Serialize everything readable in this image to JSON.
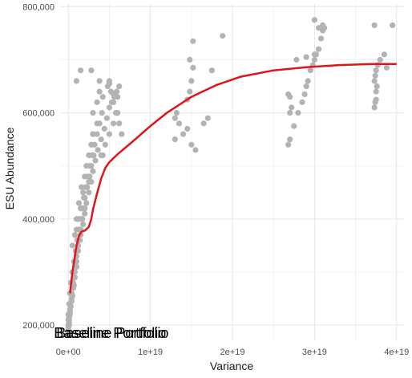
{
  "chart_data": {
    "type": "scatter",
    "xlabel": "Variance",
    "ylabel": "ESU Abundance",
    "xlim": [
      -1e+18,
      4.1e+19
    ],
    "ylim": [
      170000,
      805000
    ],
    "x_ticks": [
      0,
      1e+19,
      2e+19,
      3e+19,
      4e+19
    ],
    "x_tick_labels": [
      "0e+00",
      "1e+19",
      "2e+19",
      "3e+19",
      "4e+19"
    ],
    "y_ticks": [
      200000,
      400000,
      600000,
      800000
    ],
    "y_tick_labels": [
      "200,000",
      "400,000",
      "600,000",
      "800,000"
    ],
    "grid": true,
    "point_color": "#b3b3b3",
    "line_color": "#e0141b",
    "annotations": [
      {
        "text": "Baseline Portfolio",
        "x": 0,
        "y": 185000
      },
      {
        "text": "Baseline Portfolio",
        "x": 3e+17,
        "y": 185000
      }
    ],
    "series": [
      {
        "kind": "points",
        "x": [
          1.5e+18,
          1.8e+18,
          2e+18,
          2.2e+18,
          2.5e+18,
          2.8e+18,
          3e+18,
          3.5e+18,
          1e+18,
          1.2e+18,
          1.3e+18,
          1.6e+18,
          5e+17,
          8e+17,
          1e+18,
          2e+18,
          2.5e+18,
          4e+18,
          4.5e+18,
          5e+18,
          5.5e+18,
          6e+18,
          3e+18,
          3.5e+18,
          3.8e+18,
          4.2e+18,
          4.8e+18,
          5e+18,
          5.2e+18,
          5.5e+18,
          5.8e+18,
          6.2e+18,
          6.5e+18,
          1e+18,
          1.2e+18,
          1.5e+18,
          1.8e+18,
          2e+18,
          2.2e+18,
          2.5e+18,
          2.8e+18,
          3e+18,
          3.3e+18,
          3.6e+18,
          4e+18,
          4.4e+18,
          4.7e+18,
          5e+18,
          5.3e+18,
          5.6e+18,
          5.9e+18,
          6.2e+18,
          5e+17,
          7e+17,
          9e+17,
          1.1e+18,
          1.3e+18,
          1.5e+18,
          1.7e+18,
          1.9e+18,
          2.1e+18,
          2.3e+18,
          2.6e+18,
          2.9e+18,
          3.2e+18,
          3.5e+18,
          3.8e+18,
          4.1e+18,
          3e+17,
          5e+17,
          7e+17,
          9e+17,
          1.1e+18,
          1.3e+18,
          1.5e+18,
          1.7e+18,
          1.9e+18,
          2.2e+18,
          2.5e+18,
          2.8e+18,
          3.1e+18,
          2e+17,
          4e+17,
          6e+17,
          8e+17,
          1e+18,
          1.2e+18,
          1.4e+18,
          1.6e+18,
          1.8e+18,
          2e+18,
          2.3e+18,
          2.6e+18,
          1e+17,
          3e+17,
          5e+17,
          7e+17,
          9e+17,
          1.1e+18,
          1.3e+18,
          1.5e+18,
          1.7e+18,
          2e+18,
          0.0,
          2e+17,
          4e+17,
          6e+17,
          8e+17,
          1e+18,
          1.2e+18,
          1.4e+18,
          0.0,
          2e+17,
          4e+17,
          6e+17,
          8e+17,
          1e+18,
          0.0,
          1e+17,
          3e+17,
          5e+17,
          7e+17,
          0.0,
          1e+17,
          2e+17,
          4e+17,
          0.0,
          1e+17,
          2e+17,
          0.0,
          1e+17,
          0.0,
          0.0,
          1.3e+19,
          1.32e+19,
          1.35e+19,
          1.4e+19,
          1.45e+19,
          1.5e+19,
          1.55e+19,
          1.65e+19,
          1.7e+19,
          1.3e+19,
          1.45e+19,
          1.48e+19,
          1.5e+19,
          1.52e+19,
          1.75e+19,
          1.88e+19,
          1.48e+19,
          1.52e+19,
          2.68e+19,
          2.7e+19,
          2.75e+19,
          2.8e+19,
          2.85e+19,
          2.88e+19,
          2.9e+19,
          2.92e+19,
          2.95e+19,
          2.98e+19,
          3e+19,
          3.02e+19,
          3.05e+19,
          3.08e+19,
          3.1e+19,
          3.12e+19,
          2.7e+19,
          2.72e+19,
          2.78e+19,
          2.9e+19,
          3e+19,
          3.05e+19,
          3.1e+19,
          3e+19,
          2.68e+19,
          2.7e+19,
          3.73e+19,
          3.74e+19,
          3.75e+19,
          3.76e+19,
          3.73e+19,
          3.74e+19,
          3.75e+19,
          3.77e+19,
          3.8e+19,
          3.85e+19,
          3.88e+19,
          3.95e+19,
          3.73e+19,
          3.75e+19,
          1e+18,
          1.5e+18,
          2.8e+18,
          3.8e+18,
          5e+18,
          5.5e+18,
          3e+18,
          4.2e+18,
          6e+18
        ],
        "y": [
          420000,
          450000,
          480000,
          500000,
          520000,
          540000,
          560000,
          580000,
          380000,
          400000,
          430000,
          460000,
          350000,
          370000,
          400000,
          440000,
          470000,
          520000,
          540000,
          560000,
          580000,
          600000,
          600000,
          620000,
          640000,
          630000,
          650000,
          660000,
          640000,
          620000,
          600000,
          580000,
          560000,
          330000,
          350000,
          370000,
          390000,
          410000,
          430000,
          450000,
          470000,
          490000,
          510000,
          530000,
          550000,
          570000,
          590000,
          610000,
          620000,
          630000,
          640000,
          650000,
          300000,
          320000,
          340000,
          360000,
          380000,
          400000,
          420000,
          440000,
          460000,
          480000,
          500000,
          520000,
          540000,
          560000,
          580000,
          600000,
          280000,
          300000,
          320000,
          340000,
          360000,
          380000,
          400000,
          420000,
          440000,
          460000,
          480000,
          500000,
          520000,
          260000,
          280000,
          300000,
          320000,
          340000,
          360000,
          380000,
          400000,
          420000,
          440000,
          460000,
          480000,
          240000,
          260000,
          280000,
          300000,
          320000,
          340000,
          360000,
          380000,
          400000,
          420000,
          220000,
          240000,
          260000,
          280000,
          300000,
          320000,
          340000,
          360000,
          210000,
          230000,
          250000,
          270000,
          290000,
          310000,
          200000,
          215000,
          235000,
          255000,
          275000,
          195000,
          210000,
          225000,
          245000,
          190000,
          205000,
          220000,
          185000,
          200000,
          190000,
          182000,
          590000,
          600000,
          580000,
          560000,
          570000,
          540000,
          530000,
          580000,
          590000,
          550000,
          625000,
          640000,
          660000,
          685000,
          680000,
          745000,
          700000,
          735000,
          540000,
          550000,
          575000,
          600000,
          620000,
          635000,
          650000,
          660000,
          680000,
          690000,
          700000,
          710000,
          720000,
          740000,
          755000,
          760000,
          600000,
          610000,
          700000,
          705000,
          710000,
          760000,
          765000,
          775000,
          635000,
          630000,
          610000,
          620000,
          640000,
          650000,
          660000,
          670000,
          680000,
          690000,
          700000,
          710000,
          685000,
          765000,
          765000,
          625000,
          660000,
          680000,
          680000,
          660000,
          655000,
          635000,
          560000,
          520000,
          630000
        ]
      },
      {
        "kind": "line",
        "x": [
          2e+17,
          5e+17,
          8e+17,
          1e+18,
          1.3e+18,
          1.6e+18,
          2e+18,
          2.5e+18,
          2.8e+18,
          3e+18,
          3.5e+18,
          4e+18,
          4.5e+18,
          5e+18,
          6e+18,
          8e+18,
          1e+19,
          1.2e+19,
          1.5e+19,
          1.8e+19,
          2.1e+19,
          2.5e+19,
          2.9e+19,
          3.3e+19,
          3.7e+19,
          4e+19
        ],
        "y": [
          260000,
          300000,
          330000,
          350000,
          368000,
          376000,
          378000,
          385000,
          400000,
          418000,
          448000,
          476000,
          496000,
          507000,
          522000,
          548000,
          575000,
          600000,
          630000,
          652000,
          668000,
          680000,
          686000,
          690000,
          692000,
          692000
        ]
      }
    ]
  }
}
